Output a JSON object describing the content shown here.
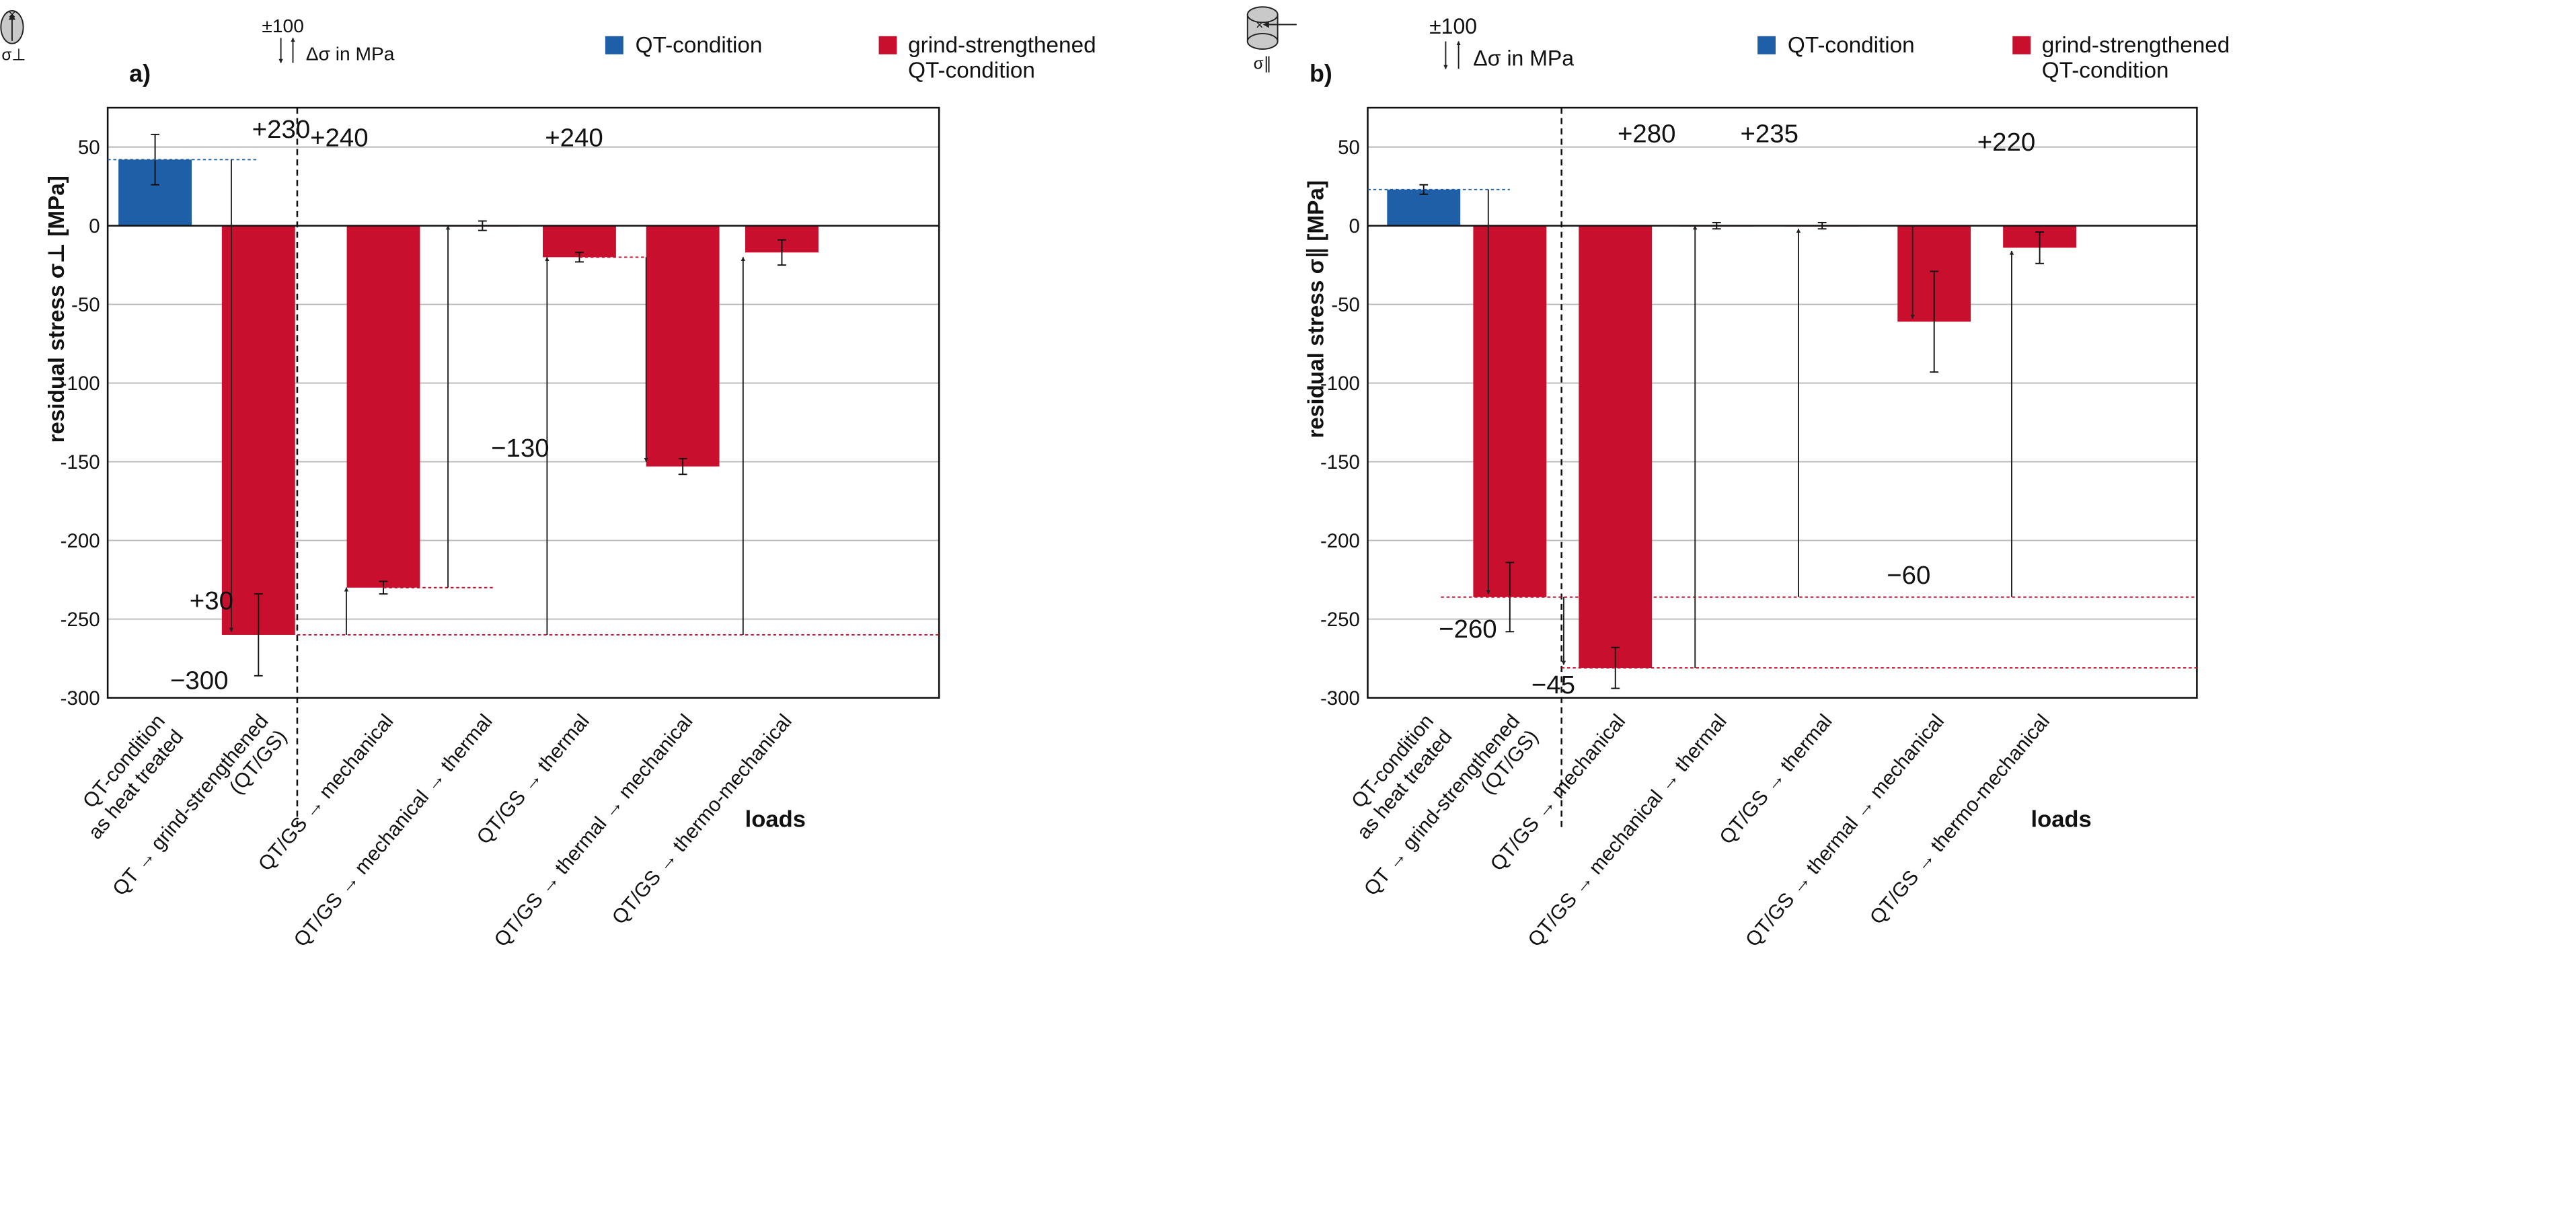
{
  "figure": {
    "legend": {
      "qt_label": "QT-condition",
      "gs_label_line1": "grind-strengthened",
      "gs_label_line2": "QT-condition",
      "qt_color": "#1f5fa8",
      "gs_color": "#c8102e"
    },
    "delta_note": {
      "value": "±100",
      "text": "Δσ in MPa"
    },
    "axis_title_x": "loads",
    "sigma_perp_symbol": "σ⊥",
    "sigma_par_symbol": "σ∥"
  },
  "chart_data": [
    {
      "type": "bar",
      "panel_label": "a)",
      "ylabel": "residual stress σ⊥ [MPa]",
      "xlabel": "loads",
      "ylim": [
        -300,
        75
      ],
      "yticks": [
        50,
        0,
        -50,
        -100,
        -150,
        -200,
        -250,
        -300
      ],
      "ytick_labels": [
        "50",
        "0",
        "-50",
        "-100",
        "-150",
        "-200",
        "-250",
        "-300"
      ],
      "grid": true,
      "categories": [
        "QT-condition\nas heat treated",
        "QT → grind-strengthened\n(QT/GS)",
        "QT/GS → mechanical",
        "QT/GS → mechanical → thermal",
        "QT/GS → thermal",
        "QT/GS → thermal → mechanical",
        "QT/GS → thermo-mechanical"
      ],
      "series": [
        {
          "name": "QT-condition",
          "values": [
            42,
            null,
            null,
            null,
            null,
            null,
            null
          ]
        },
        {
          "name": "grind-strengthened QT-condition",
          "values": [
            null,
            -260,
            -230,
            0,
            -20,
            -153,
            -17
          ]
        }
      ],
      "errors": [
        16,
        26,
        4,
        3,
        3,
        5,
        8
      ],
      "reference_lines": [
        42,
        -230,
        -20,
        -260
      ],
      "annotations": [
        {
          "label": "−300",
          "from": 42,
          "to": -258
        },
        {
          "label": "+30",
          "from": -260,
          "to": -230
        },
        {
          "label": "+230",
          "from": -230,
          "to": 0
        },
        {
          "label": "+240",
          "from": -260,
          "to": -20
        },
        {
          "label": "−130",
          "from": -20,
          "to": -150
        },
        {
          "label": "+240",
          "from": -260,
          "to": -20
        }
      ]
    },
    {
      "type": "bar",
      "panel_label": "b)",
      "ylabel": "residual stress σ∥ [MPa]",
      "xlabel": "loads",
      "ylim": [
        -300,
        75
      ],
      "yticks": [
        50,
        0,
        -50,
        -100,
        -150,
        -200,
        -250,
        -300
      ],
      "ytick_labels": [
        "50",
        "0",
        "-50",
        "-100",
        "-150",
        "-200",
        "-250",
        "-300"
      ],
      "grid": true,
      "categories": [
        "QT-condition\nas heat treated",
        "QT → grind-strengthened\n(QT/GS)",
        "QT/GS → mechanical",
        "QT/GS → mechanical → thermal",
        "QT/GS → thermal",
        "QT/GS → thermal → mechanical",
        "QT/GS → thermo-mechanical"
      ],
      "series": [
        {
          "name": "QT-condition",
          "values": [
            23,
            null,
            null,
            null,
            null,
            null,
            null
          ]
        },
        {
          "name": "grind-strengthened QT-condition",
          "values": [
            null,
            -236,
            -281,
            0,
            0,
            -61,
            -14
          ]
        }
      ],
      "errors": [
        3,
        22,
        13,
        2,
        2,
        32,
        10
      ],
      "reference_lines": [
        23,
        -236,
        -281
      ],
      "annotations": [
        {
          "label": "−260",
          "from": 23,
          "to": -234
        },
        {
          "label": "−45",
          "from": -236,
          "to": -279
        },
        {
          "label": "+280",
          "from": -281,
          "to": 0
        },
        {
          "label": "+235",
          "from": -236,
          "to": -2
        },
        {
          "label": "−60",
          "from": 0,
          "to": -59
        },
        {
          "label": "+220",
          "from": -236,
          "to": -16
        }
      ]
    }
  ]
}
